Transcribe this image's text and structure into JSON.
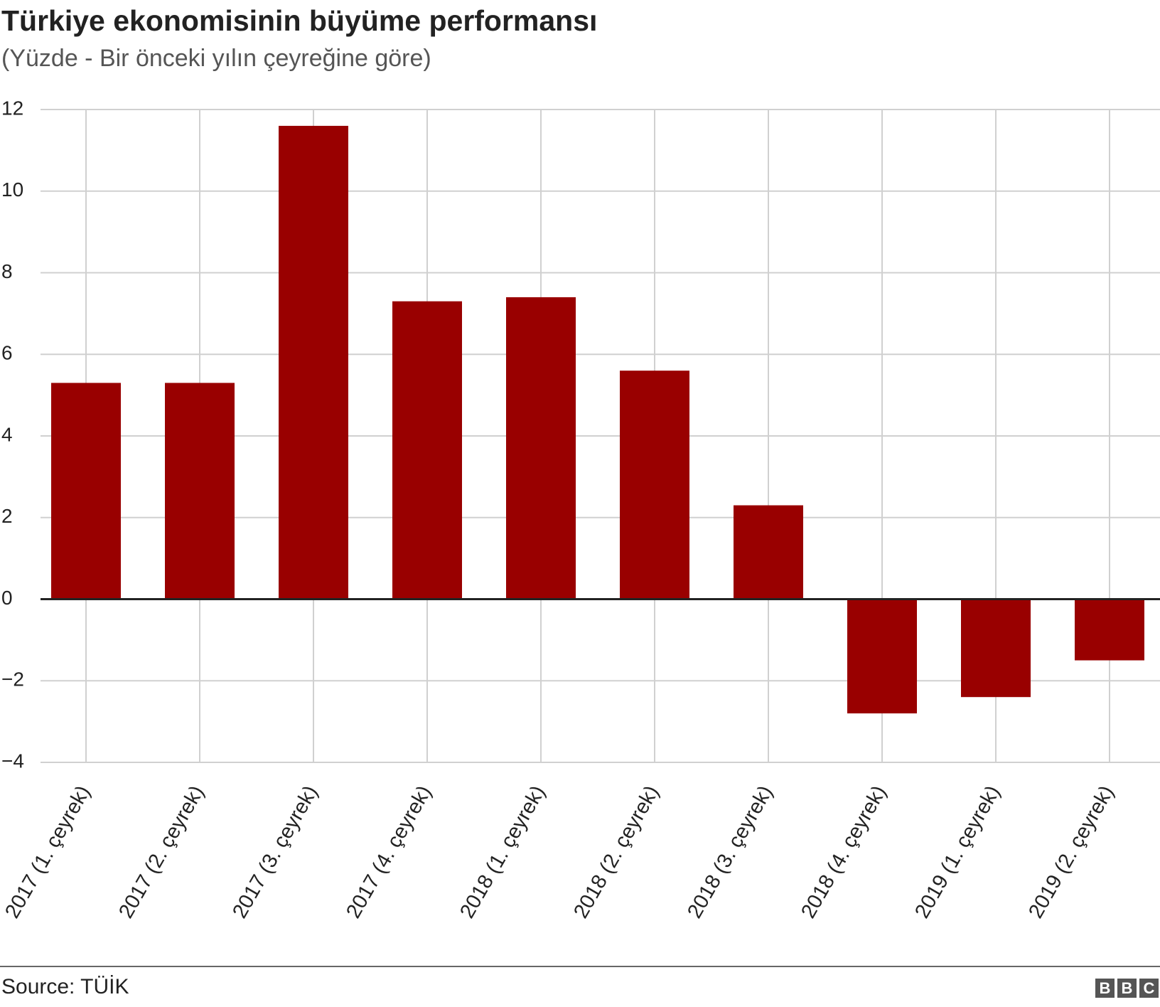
{
  "chart_data": {
    "type": "bar",
    "title": "Türkiye ekonomisinin büyüme performansı",
    "subtitle": "(Yüzde - Bir önceki yılın çeyreğine göre)",
    "categories": [
      "2017 (1. çeyrek)",
      "2017 (2. çeyrek)",
      "2017 (3. çeyrek)",
      "2017 (4. çeyrek)",
      "2018 (1. çeyrek)",
      "2018 (2. çeyrek)",
      "2018 (3. çeyrek)",
      "2018 (4. çeyrek)",
      "2019 (1. çeyrek)",
      "2019 (2. çeyrek)"
    ],
    "values": [
      5.3,
      5.3,
      11.6,
      7.3,
      7.4,
      5.6,
      2.3,
      -2.8,
      -2.4,
      -1.5
    ],
    "color": "#990000",
    "ylim": [
      -4,
      12
    ],
    "yticks": [
      {
        "value": -4,
        "label": "−4"
      },
      {
        "value": -2,
        "label": "−2"
      },
      0,
      2,
      4,
      6,
      8,
      10,
      12
    ],
    "grid": true,
    "source": "Source: TÜİK",
    "logo": [
      "B",
      "B",
      "C"
    ]
  }
}
